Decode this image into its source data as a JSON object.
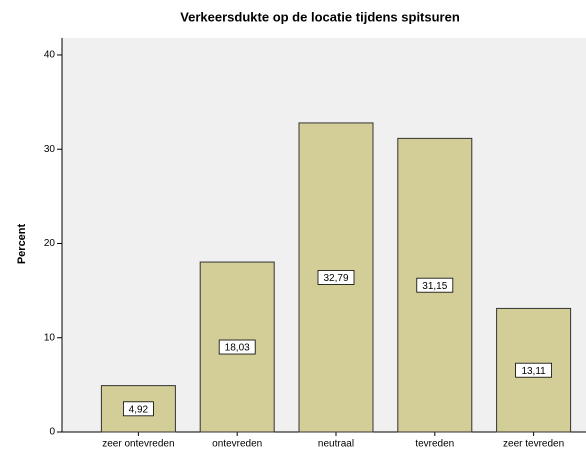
{
  "chart_data": {
    "type": "bar",
    "title": "Verkeersdukte op de locatie tijdens spitsuren",
    "y_label": "Percent",
    "categories": [
      "zeer ontevreden",
      "ontevreden",
      "neutraal",
      "tevreden",
      "zeer tevreden"
    ],
    "values": [
      4.92,
      18.03,
      32.79,
      31.15,
      13.11
    ],
    "value_labels": [
      "4,92",
      "18,03",
      "32,79",
      "31,15",
      "13,11"
    ],
    "color": "#d3ce97",
    "ylim": [
      0,
      41.8
    ],
    "yticks": [
      0,
      10,
      20,
      30,
      40
    ],
    "grid": false
  }
}
